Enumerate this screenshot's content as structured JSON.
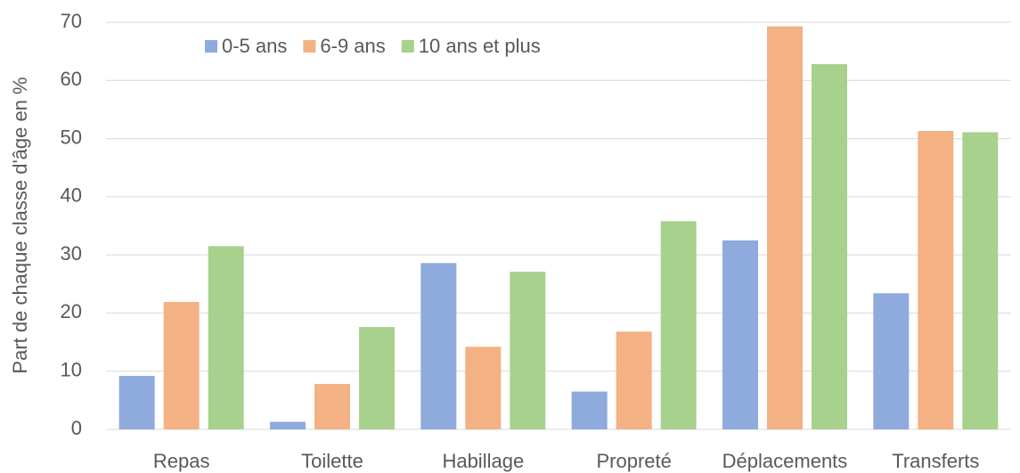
{
  "chart_data": {
    "type": "bar",
    "y_label": "Part de chaque classe d'âge en %",
    "categories": [
      "Repas",
      "Toilette",
      "Habillage",
      "Propreté",
      "Déplacements",
      "Transferts"
    ],
    "series": [
      {
        "name": "0-5 ans",
        "color": "#8faadc",
        "values": [
          9.2,
          1.3,
          28.6,
          6.5,
          32.5,
          23.4
        ]
      },
      {
        "name": "6-9 ans",
        "color": "#f4b183",
        "values": [
          21.9,
          7.8,
          14.2,
          16.8,
          69.3,
          51.3
        ]
      },
      {
        "name": "10 ans et plus",
        "color": "#a9d18e",
        "values": [
          31.5,
          17.6,
          27.1,
          35.8,
          62.8,
          51.1
        ]
      }
    ],
    "ylim": [
      0,
      70
    ],
    "yticks": [
      0,
      10,
      20,
      30,
      40,
      50,
      60,
      70
    ],
    "grid": true,
    "legend": "top-left"
  }
}
